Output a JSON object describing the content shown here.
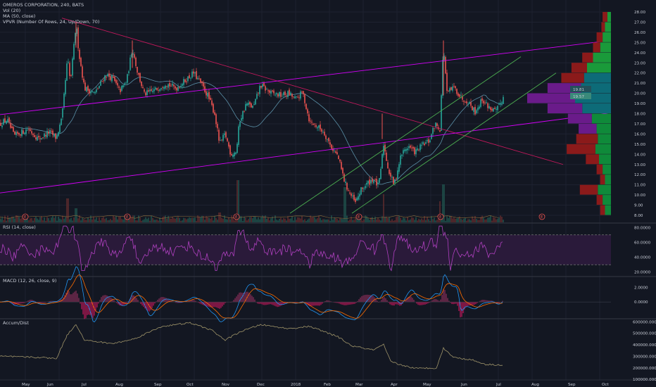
{
  "title": "OMEROS CORPORATION, 240, BATS",
  "indicators": {
    "vol": "Vol (20)",
    "ma": "MA (50, close)",
    "vpvr": "VPVR (Number Of Rows, 24, Up/Down, 70)",
    "rsi": "RSI (14, close)",
    "macd": "MACD (12, 26, close, 9)",
    "accum": "Accum/Dist"
  },
  "price_badges": [
    "19.81",
    "19.57"
  ],
  "event_marker": "E",
  "colors": {
    "background": "#131722",
    "grid": "#1e2230",
    "up": "#26a69a",
    "down": "#ef5350",
    "trend_red": "#c2185b",
    "channel_magenta": "#d500f9",
    "channel_green": "#4caf50",
    "ma": "#5a8fa6",
    "rsi": "#b040c0",
    "rsi_band": "#2a1a3a",
    "macd": "#2196f3",
    "signal": "#ff6d00",
    "accum": "#a0956a"
  },
  "chart_data": [
    {
      "type": "candlestick",
      "title": "OMEROS CORPORATION, 240, BATS",
      "x_ticks": [
        "May",
        "Jun",
        "Jul",
        "Aug",
        "Sep",
        "Oct",
        "Nov",
        "Dec",
        "2018",
        "Feb",
        "Mar",
        "Apr",
        "May",
        "Jun",
        "Jul",
        "Aug",
        "Sep",
        "Oct"
      ],
      "y_ticks": [
        "28.00",
        "27.00",
        "26.00",
        "25.00",
        "24.00",
        "23.00",
        "22.00",
        "21.00",
        "20.00",
        "19.00",
        "18.00",
        "17.00",
        "16.00",
        "15.00",
        "14.00",
        "13.00",
        "12.00",
        "11.00",
        "10.00",
        "9.00",
        "8.00"
      ],
      "ylim": [
        8,
        28
      ],
      "close_path": [
        {
          "t": 0,
          "y": 17.0
        },
        {
          "t": 10,
          "y": 17.4
        },
        {
          "t": 20,
          "y": 15.8
        },
        {
          "t": 40,
          "y": 16.5
        },
        {
          "t": 55,
          "y": 15.5
        },
        {
          "t": 70,
          "y": 16.2
        },
        {
          "t": 80,
          "y": 15.6
        },
        {
          "t": 88,
          "y": 17.5
        },
        {
          "t": 96,
          "y": 23.5
        },
        {
          "t": 100,
          "y": 21.0
        },
        {
          "t": 108,
          "y": 26.8
        },
        {
          "t": 112,
          "y": 24.0
        },
        {
          "t": 120,
          "y": 20.5
        },
        {
          "t": 135,
          "y": 20.0
        },
        {
          "t": 150,
          "y": 21.8
        },
        {
          "t": 160,
          "y": 21.5
        },
        {
          "t": 170,
          "y": 20.2
        },
        {
          "t": 180,
          "y": 21.2
        },
        {
          "t": 188,
          "y": 24.5
        },
        {
          "t": 195,
          "y": 22.2
        },
        {
          "t": 205,
          "y": 19.9
        },
        {
          "t": 220,
          "y": 20.3
        },
        {
          "t": 235,
          "y": 21.0
        },
        {
          "t": 250,
          "y": 20.5
        },
        {
          "t": 262,
          "y": 21.2
        },
        {
          "t": 275,
          "y": 22.0
        },
        {
          "t": 285,
          "y": 21.0
        },
        {
          "t": 295,
          "y": 19.8
        },
        {
          "t": 305,
          "y": 18.0
        },
        {
          "t": 312,
          "y": 15.0
        },
        {
          "t": 320,
          "y": 16.0
        },
        {
          "t": 328,
          "y": 14.0
        },
        {
          "t": 336,
          "y": 14.3
        },
        {
          "t": 340,
          "y": 17.2
        },
        {
          "t": 350,
          "y": 19.0
        },
        {
          "t": 360,
          "y": 18.6
        },
        {
          "t": 370,
          "y": 20.8
        },
        {
          "t": 385,
          "y": 20.0
        },
        {
          "t": 400,
          "y": 19.8
        },
        {
          "t": 410,
          "y": 20.0
        },
        {
          "t": 420,
          "y": 19.4
        },
        {
          "t": 430,
          "y": 20.1
        },
        {
          "t": 440,
          "y": 17.2
        },
        {
          "t": 450,
          "y": 16.8
        },
        {
          "t": 460,
          "y": 16.2
        },
        {
          "t": 470,
          "y": 14.8
        },
        {
          "t": 480,
          "y": 13.8
        },
        {
          "t": 490,
          "y": 11.2
        },
        {
          "t": 498,
          "y": 10.0
        },
        {
          "t": 505,
          "y": 9.2
        },
        {
          "t": 512,
          "y": 10.4
        },
        {
          "t": 520,
          "y": 11.0
        },
        {
          "t": 530,
          "y": 11.6
        },
        {
          "t": 538,
          "y": 10.8
        },
        {
          "t": 545,
          "y": 15.0
        },
        {
          "t": 552,
          "y": 12.4
        },
        {
          "t": 560,
          "y": 11.0
        },
        {
          "t": 570,
          "y": 14.0
        },
        {
          "t": 580,
          "y": 14.8
        },
        {
          "t": 590,
          "y": 14.2
        },
        {
          "t": 600,
          "y": 14.9
        },
        {
          "t": 610,
          "y": 15.3
        },
        {
          "t": 618,
          "y": 17.0
        },
        {
          "t": 625,
          "y": 16.5
        },
        {
          "t": 630,
          "y": 24.8
        },
        {
          "t": 635,
          "y": 20.0
        },
        {
          "t": 645,
          "y": 20.6
        },
        {
          "t": 655,
          "y": 19.6
        },
        {
          "t": 665,
          "y": 19.2
        },
        {
          "t": 675,
          "y": 18.2
        },
        {
          "t": 685,
          "y": 19.4
        },
        {
          "t": 695,
          "y": 18.6
        },
        {
          "t": 705,
          "y": 18.2
        },
        {
          "t": 715,
          "y": 19.6
        }
      ],
      "volume_profile": [
        {
          "price": 27.5,
          "up": 6,
          "down": 8
        },
        {
          "price": 26.5,
          "up": 10,
          "down": 6
        },
        {
          "price": 25.5,
          "up": 14,
          "down": 10
        },
        {
          "price": 24.5,
          "up": 18,
          "down": 12
        },
        {
          "price": 23.5,
          "up": 30,
          "down": 18
        },
        {
          "price": 22.5,
          "up": 40,
          "down": 26
        },
        {
          "price": 21.5,
          "up": 45,
          "down": 38
        },
        {
          "price": 20.5,
          "up": 50,
          "down": 56
        },
        {
          "price": 19.5,
          "up": 60,
          "down": 80
        },
        {
          "price": 18.5,
          "up": 48,
          "down": 58
        },
        {
          "price": 17.5,
          "up": 32,
          "down": 40
        },
        {
          "price": 16.5,
          "up": 24,
          "down": 30
        },
        {
          "price": 15.5,
          "up": 22,
          "down": 36
        },
        {
          "price": 14.5,
          "up": 26,
          "down": 48
        },
        {
          "price": 13.5,
          "up": 20,
          "down": 22
        },
        {
          "price": 12.5,
          "up": 14,
          "down": 10
        },
        {
          "price": 11.5,
          "up": 10,
          "down": 8
        },
        {
          "price": 10.5,
          "up": 22,
          "down": 30
        },
        {
          "price": 9.5,
          "up": 14,
          "down": 10
        },
        {
          "price": 8.5,
          "up": 10,
          "down": 8
        }
      ]
    },
    {
      "type": "line",
      "title": "RSI (14, close)",
      "y_ticks": [
        "80.0000",
        "60.0000",
        "40.0000",
        "20.0000"
      ],
      "bands": [
        70,
        30
      ],
      "ylim": [
        15,
        85
      ]
    },
    {
      "type": "line",
      "title": "MACD (12, 26, close, 9)",
      "y_ticks": [
        "2.0000",
        "0.0000"
      ],
      "ylim": [
        -2.2,
        3.4
      ]
    },
    {
      "type": "line",
      "title": "Accum/Dist",
      "y_ticks": [
        "600000.0000",
        "500000.0000",
        "400000.0000",
        "300000.0000",
        "200000.0000",
        "100000.0000"
      ],
      "ylim": [
        95000,
        620000
      ]
    }
  ]
}
